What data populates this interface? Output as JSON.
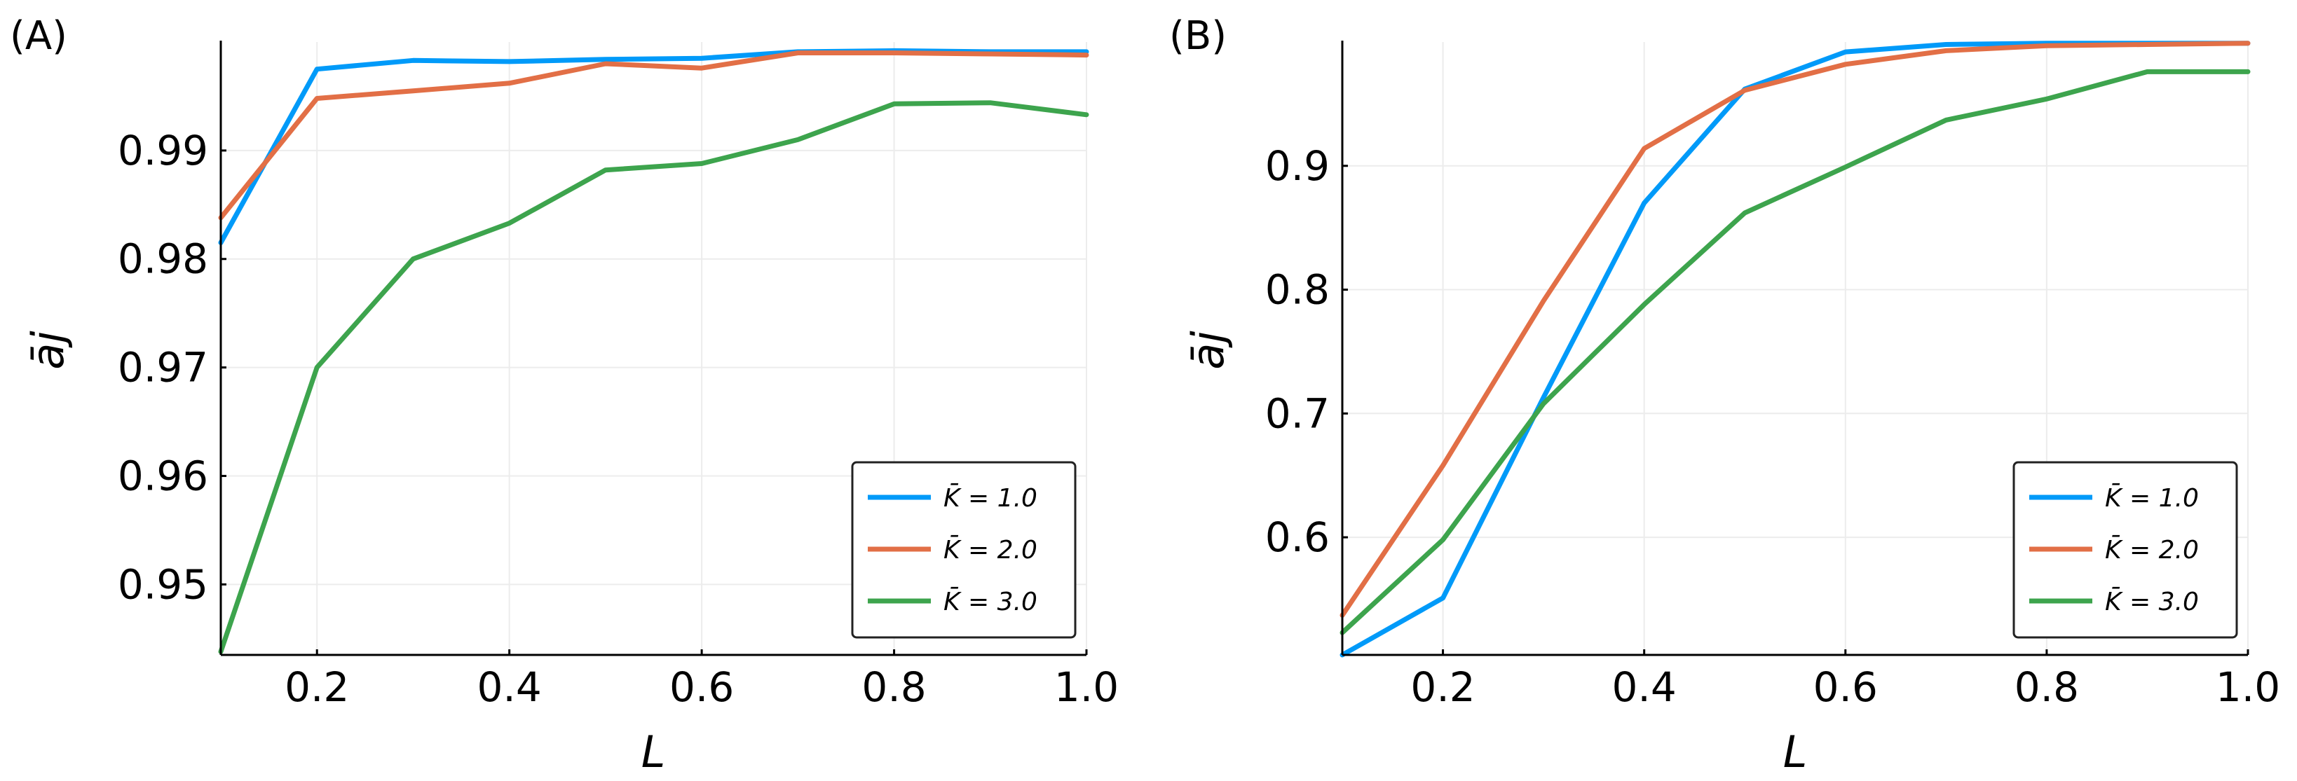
{
  "figure": {
    "panels": [
      "(A)",
      "(B)"
    ]
  },
  "colors": {
    "series": [
      "#009af9",
      "#e26f46",
      "#3da44d"
    ],
    "grid": "#ececec",
    "axis": "#000000"
  },
  "chart_data": [
    {
      "type": "line",
      "panel_label": "(A)",
      "xlabel": "L",
      "ylabel": "āj",
      "xlim": [
        0.1,
        1.0
      ],
      "ylim": [
        0.9435,
        1.0
      ],
      "xticks": [
        0.2,
        0.4,
        0.6,
        0.8,
        1.0
      ],
      "xtick_labels": [
        "0.2",
        "0.4",
        "0.6",
        "0.8",
        "1.0"
      ],
      "yticks": [
        0.95,
        0.96,
        0.97,
        0.98,
        0.99
      ],
      "ytick_labels": [
        "0.95",
        "0.96",
        "0.97",
        "0.98",
        "0.99"
      ],
      "grid": true,
      "legend_position": "bottom-right",
      "x": [
        0.1,
        0.2,
        0.3,
        0.4,
        0.5,
        0.6,
        0.7,
        0.8,
        0.9,
        1.0
      ],
      "series": [
        {
          "name": "K̄ = 1.0",
          "values": [
            0.9815,
            0.9975,
            0.9983,
            0.9982,
            0.9984,
            0.9985,
            0.9991,
            0.9992,
            0.9991,
            0.9991
          ]
        },
        {
          "name": "K̄ = 2.0",
          "values": [
            0.9838,
            0.9948,
            0.9955,
            0.9962,
            0.998,
            0.9976,
            0.999,
            0.999,
            0.9989,
            0.9988
          ]
        },
        {
          "name": "K̄ = 3.0",
          "values": [
            0.9438,
            0.97,
            0.98,
            0.9833,
            0.9882,
            0.9888,
            0.991,
            0.9943,
            0.9944,
            0.9933
          ]
        }
      ]
    },
    {
      "type": "line",
      "panel_label": "(B)",
      "xlabel": "L",
      "ylabel": "āj",
      "xlim": [
        0.1,
        1.0
      ],
      "ylim": [
        0.505,
        1.0
      ],
      "xticks": [
        0.2,
        0.4,
        0.6,
        0.8,
        1.0
      ],
      "xtick_labels": [
        "0.2",
        "0.4",
        "0.6",
        "0.8",
        "1.0"
      ],
      "yticks": [
        0.6,
        0.7,
        0.8,
        0.9
      ],
      "ytick_labels": [
        "0.6",
        "0.7",
        "0.8",
        "0.9"
      ],
      "grid": true,
      "legend_position": "bottom-right",
      "x": [
        0.1,
        0.2,
        0.3,
        0.4,
        0.5,
        0.6,
        0.7,
        0.8,
        0.9,
        1.0
      ],
      "series": [
        {
          "name": "K̄ = 1.0",
          "values": [
            0.505,
            0.551,
            0.713,
            0.87,
            0.962,
            0.992,
            0.998,
            0.999,
            0.999,
            0.999
          ]
        },
        {
          "name": "K̄ = 2.0",
          "values": [
            0.537,
            0.658,
            0.791,
            0.914,
            0.961,
            0.982,
            0.993,
            0.997,
            0.998,
            0.999
          ]
        },
        {
          "name": "K̄ = 3.0",
          "values": [
            0.523,
            0.598,
            0.708,
            0.788,
            0.862,
            0.899,
            0.937,
            0.954,
            0.976,
            0.976
          ]
        }
      ]
    }
  ]
}
